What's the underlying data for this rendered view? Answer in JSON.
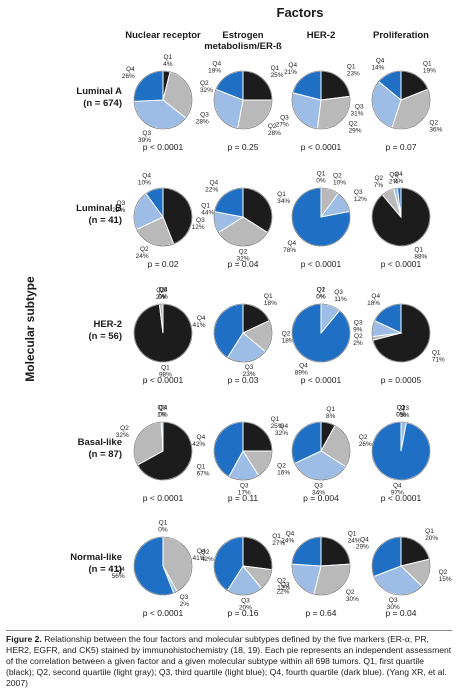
{
  "chart_data": {
    "type": "pie",
    "title": "Factors",
    "y_label": "Molecular subtype",
    "columns": [
      "Nuclear receptor",
      "Estrogen metabolism/ER-ß",
      "HER-2",
      "Proliferation"
    ],
    "rows": [
      {
        "name": "Luminal A",
        "n": "(n = 674)"
      },
      {
        "name": "Luminal B",
        "n": "(n = 41)"
      },
      {
        "name": "HER-2",
        "n": "(n = 56)"
      },
      {
        "name": "Basal-like",
        "n": "(n = 87)"
      },
      {
        "name": "Normal-like",
        "n": "(n = 41)"
      }
    ],
    "slice_labels": [
      "Q1",
      "Q2",
      "Q3",
      "Q4"
    ],
    "colors": [
      "#1c1c1c",
      "#b9b9b9",
      "#9dbde6",
      "#1f70c4"
    ],
    "cells": [
      [
        {
          "values": [
            4,
            32,
            39,
            26
          ],
          "value_labels": [
            "4%",
            "32%",
            "39%",
            "26%"
          ],
          "p": "p < 0.0001"
        },
        {
          "values": [
            25,
            28,
            28,
            19
          ],
          "value_labels": [
            "25%",
            "28%",
            "28%",
            "19%"
          ],
          "p": "p = 0.25"
        },
        {
          "values": [
            23,
            29,
            27,
            21
          ],
          "value_labels": [
            "23%",
            "29%",
            "27%",
            "21%"
          ],
          "p": "p < 0.0001"
        },
        {
          "values": [
            19,
            36,
            31,
            14
          ],
          "value_labels": [
            "19%",
            "36%",
            "31%",
            "14%"
          ],
          "p": "p = 0.07"
        }
      ],
      [
        {
          "values": [
            44,
            24,
            22,
            10
          ],
          "value_labels": [
            "44%",
            "24%",
            "22%",
            "10%"
          ],
          "p": "p = 0.02"
        },
        {
          "values": [
            34,
            32,
            12,
            22
          ],
          "value_labels": [
            "34%",
            "32%",
            "12%",
            "22%"
          ],
          "p": "p = 0.04"
        },
        {
          "values": [
            0,
            10,
            12,
            78
          ],
          "value_labels": [
            "0%",
            "10%",
            "12%",
            "78%"
          ],
          "p": "p < 0.0001"
        },
        {
          "values": [
            88,
            7,
            2,
            2
          ],
          "value_labels": [
            "88%",
            "7%",
            "2%",
            "2%"
          ],
          "p": "p < 0.0001"
        }
      ],
      [
        {
          "values": [
            98,
            2,
            0,
            0
          ],
          "value_labels": [
            "98%",
            "2%",
            "0%",
            "0%"
          ],
          "p": "p < 0.0001"
        },
        {
          "values": [
            18,
            18,
            23,
            41
          ],
          "value_labels": [
            "18%",
            "18%",
            "23%",
            "41%"
          ],
          "p": "p = 0.03"
        },
        {
          "values": [
            0,
            0,
            11,
            89
          ],
          "value_labels": [
            "0%",
            "0%",
            "11%",
            "89%"
          ],
          "p": "p < 0.0001"
        },
        {
          "values": [
            71,
            2,
            9,
            18
          ],
          "value_labels": [
            "71%",
            "2%",
            "9%",
            "18%"
          ],
          "p": "p = 0.0005"
        }
      ],
      [
        {
          "values": [
            67,
            32,
            1,
            0
          ],
          "value_labels": [
            "67%",
            "32%",
            "1%",
            "0%"
          ],
          "p": "p < 0.0001"
        },
        {
          "values": [
            25,
            16,
            17,
            42
          ],
          "value_labels": [
            "25%",
            "16%",
            "17%",
            "42%"
          ],
          "p": "p = 0.11"
        },
        {
          "values": [
            8,
            26,
            34,
            32
          ],
          "value_labels": [
            "8%",
            "26%",
            "34%",
            "32%"
          ],
          "p": "p = 0.004"
        },
        {
          "values": [
            0,
            0,
            3,
            97
          ],
          "value_labels": [
            "0%",
            "0%",
            "3%",
            "97%"
          ],
          "p": "p < 0.0001"
        }
      ],
      [
        {
          "values": [
            0,
            42,
            2,
            56
          ],
          "value_labels": [
            "0%",
            "42%",
            "2%",
            "56%"
          ],
          "p": "p < 0.0001"
        },
        {
          "values": [
            27,
            12,
            20,
            41
          ],
          "value_labels": [
            "27%",
            "12%",
            "20%",
            "41%"
          ],
          "p": "p = 0.16"
        },
        {
          "values": [
            24,
            30,
            22,
            24
          ],
          "value_labels": [
            "24%",
            "30%",
            "22%",
            "24%"
          ],
          "p": "p = 0.64"
        },
        {
          "values": [
            20,
            15,
            30,
            29
          ],
          "value_labels": [
            "20%",
            "15%",
            "30%",
            "29%"
          ],
          "p": "p = 0.04"
        }
      ]
    ],
    "caption_label": "Figure 2.",
    "caption": "Relationship between the four factors and molecular subtypes defined by the five markers (ER-α, PR, HER2, EGFR, and CK5) stained by immunohistochemistry (18, 19). Each pie represents an independent assessment of the correlation between a given factor and a given molecular subtype within all 698 tumors. Q1, first quartile (black); Q2, second quartile (light gray); Q3, third quartile (light blue); Q4, fourth quartile (dark blue). (Yang XR, et al. 2007)"
  }
}
